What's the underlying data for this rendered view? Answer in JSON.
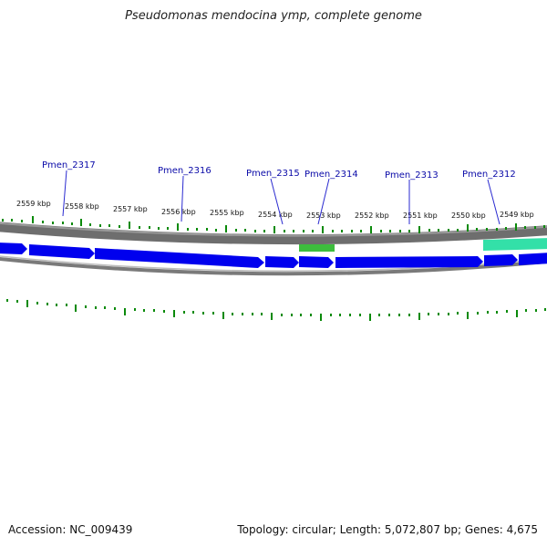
{
  "title": "Pseudomonas mendocina ymp, complete genome",
  "footer": {
    "accession": "Accession: NC_009439",
    "summary": "Topology: circular; Length: 5,072,807 bp; Genes: 4,675"
  },
  "colors": {
    "gene_arrow": "#0000ee",
    "backbone": "#6e6e6e",
    "highlight_green": "#3dbd3d",
    "highlight_teal": "#33e0a8",
    "tick": "#0a8a0a",
    "label": "#0a0aa8"
  },
  "scale_labels": [
    "2559 kbp",
    "2558 kbp",
    "2557 kbp",
    "2556 kbp",
    "2555 kbp",
    "2554 kbp",
    "2553 kbp",
    "2552 kbp",
    "2551 kbp",
    "2550 kbp",
    "2549 kbp"
  ],
  "genes": [
    {
      "name": "Pmen_2317"
    },
    {
      "name": "Pmen_2316"
    },
    {
      "name": "Pmen_2315"
    },
    {
      "name": "Pmen_2314"
    },
    {
      "name": "Pmen_2313"
    },
    {
      "name": "Pmen_2312"
    }
  ]
}
